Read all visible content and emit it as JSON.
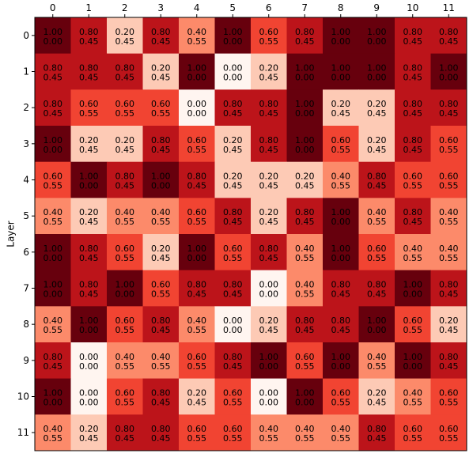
{
  "chart_data": {
    "type": "heatmap",
    "title": "",
    "xlabel": "",
    "ylabel": "Layer",
    "colormap": "Reds",
    "color_range": [
      0,
      1
    ],
    "x_categories": [
      "0",
      "1",
      "2",
      "3",
      "4",
      "5",
      "6",
      "7",
      "8",
      "9",
      "10",
      "11"
    ],
    "y_categories": [
      "0",
      "1",
      "2",
      "3",
      "4",
      "5",
      "6",
      "7",
      "8",
      "9",
      "10",
      "11"
    ],
    "x_tick_position": "top",
    "values": [
      [
        1.0,
        0.8,
        0.2,
        0.8,
        0.4,
        1.0,
        0.6,
        0.8,
        1.0,
        1.0,
        0.8,
        0.8
      ],
      [
        0.8,
        0.8,
        0.8,
        0.2,
        1.0,
        0.0,
        0.2,
        1.0,
        1.0,
        1.0,
        0.8,
        1.0
      ],
      [
        0.8,
        0.6,
        0.6,
        0.6,
        0.0,
        0.8,
        0.8,
        1.0,
        0.2,
        0.2,
        0.8,
        0.8
      ],
      [
        1.0,
        0.2,
        0.2,
        0.8,
        0.6,
        0.2,
        0.8,
        1.0,
        0.6,
        0.2,
        0.8,
        0.6
      ],
      [
        0.6,
        1.0,
        0.8,
        1.0,
        0.8,
        0.2,
        0.2,
        0.2,
        0.4,
        0.8,
        0.6,
        0.6
      ],
      [
        0.4,
        0.2,
        0.4,
        0.4,
        0.6,
        0.8,
        0.2,
        0.8,
        1.0,
        0.4,
        0.8,
        0.4
      ],
      [
        1.0,
        0.8,
        0.6,
        0.2,
        1.0,
        0.6,
        0.8,
        0.4,
        1.0,
        0.6,
        0.4,
        0.4
      ],
      [
        1.0,
        0.8,
        1.0,
        0.6,
        0.8,
        0.8,
        0.0,
        0.4,
        0.8,
        0.8,
        1.0,
        0.8
      ],
      [
        0.4,
        1.0,
        0.6,
        0.8,
        0.4,
        0.0,
        0.2,
        0.8,
        0.8,
        1.0,
        0.6,
        0.2
      ],
      [
        0.8,
        0.0,
        0.4,
        0.4,
        0.6,
        0.8,
        1.0,
        0.6,
        1.0,
        0.4,
        1.0,
        0.8
      ],
      [
        1.0,
        0.0,
        0.6,
        0.8,
        0.2,
        0.6,
        0.0,
        1.0,
        0.6,
        0.2,
        0.4,
        0.6
      ],
      [
        0.4,
        0.2,
        0.8,
        0.8,
        0.6,
        0.6,
        0.4,
        0.4,
        0.4,
        0.8,
        0.6,
        0.6
      ]
    ],
    "secondary_values": [
      [
        0.0,
        0.45,
        0.45,
        0.45,
        0.55,
        0.0,
        0.55,
        0.45,
        0.0,
        0.0,
        0.45,
        0.45
      ],
      [
        0.45,
        0.45,
        0.45,
        0.45,
        0.0,
        0.0,
        0.45,
        0.0,
        0.0,
        0.0,
        0.45,
        0.0
      ],
      [
        0.45,
        0.55,
        0.55,
        0.55,
        0.0,
        0.45,
        0.45,
        0.0,
        0.45,
        0.45,
        0.45,
        0.45
      ],
      [
        0.0,
        0.45,
        0.45,
        0.45,
        0.55,
        0.45,
        0.45,
        0.0,
        0.55,
        0.45,
        0.45,
        0.55
      ],
      [
        0.55,
        0.0,
        0.45,
        0.0,
        0.45,
        0.45,
        0.45,
        0.45,
        0.55,
        0.45,
        0.55,
        0.55
      ],
      [
        0.55,
        0.45,
        0.55,
        0.55,
        0.55,
        0.45,
        0.45,
        0.45,
        0.0,
        0.55,
        0.45,
        0.55
      ],
      [
        0.0,
        0.45,
        0.55,
        0.45,
        0.0,
        0.55,
        0.45,
        0.55,
        0.0,
        0.55,
        0.55,
        0.55
      ],
      [
        0.0,
        0.45,
        0.0,
        0.55,
        0.45,
        0.45,
        0.0,
        0.55,
        0.45,
        0.45,
        0.0,
        0.45
      ],
      [
        0.55,
        0.0,
        0.55,
        0.45,
        0.55,
        0.0,
        0.45,
        0.45,
        0.45,
        0.0,
        0.55,
        0.45
      ],
      [
        0.45,
        0.0,
        0.55,
        0.55,
        0.55,
        0.45,
        0.0,
        0.55,
        0.0,
        0.55,
        0.0,
        0.45
      ],
      [
        0.0,
        0.0,
        0.55,
        0.45,
        0.45,
        0.55,
        0.0,
        0.0,
        0.55,
        0.45,
        0.55,
        0.55
      ],
      [
        0.55,
        0.45,
        0.45,
        0.45,
        0.55,
        0.55,
        0.55,
        0.55,
        0.55,
        0.45,
        0.55,
        0.55
      ]
    ]
  }
}
